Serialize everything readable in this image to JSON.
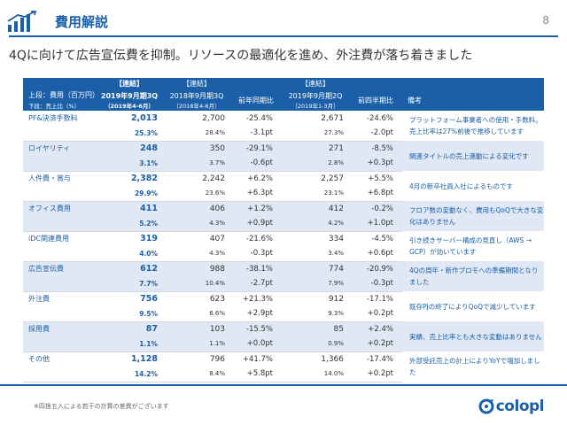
{
  "header": {
    "title": "費用解説",
    "page": "8"
  },
  "subtitle": "4Qに向けて広告宣伝費を抑制。リソースの最適化を進め、外注費が落ち着きました",
  "table": {
    "group_labels": {
      "col1": "【連結】",
      "col2": "【連結】",
      "col4": "【連結】"
    },
    "row_label_title": "上段：費用（百万円）",
    "row_label_sub": "下段：売上比（%）",
    "col1": {
      "l1": "2019年9月期3Q",
      "l2": "（2019年4-6月）"
    },
    "col2": {
      "l1": "2018年9月期3Q",
      "l2": "（2018年4-6月）"
    },
    "col3": "前年同期比",
    "col4": {
      "l1": "2019年9月期2Q",
      "l2": "（2019年1-3月）"
    },
    "col5": "前四半期比",
    "col6": "備考",
    "rows": [
      {
        "cat": "PF&決済手数料",
        "v1": "2,013",
        "v2": "2,700",
        "v3": "-25.4%",
        "v4": "2,671",
        "v5": "-24.6%",
        "p1": "25.3%",
        "p2": "28.4%",
        "p3": "-3.1pt",
        "p4": "27.3%",
        "p5": "-2.0pt",
        "note": "プラットフォーム事業者への使用・手数料。売上比率は27%前後で推移しています"
      },
      {
        "cat": "ロイヤリティ",
        "v1": "248",
        "v2": "350",
        "v3": "-29.1%",
        "v4": "271",
        "v5": "-8.5%",
        "p1": "3.1%",
        "p2": "3.7%",
        "p3": "-0.6pt",
        "p4": "2.8%",
        "p5": "+0.3pt",
        "note": "関連タイトルの売上連動による変化です"
      },
      {
        "cat": "人件費・賞与",
        "v1": "2,382",
        "v2": "2,242",
        "v3": "+6.2%",
        "v4": "2,257",
        "v5": "+5.5%",
        "p1": "29.9%",
        "p2": "23.6%",
        "p3": "+6.3pt",
        "p4": "23.1%",
        "p5": "+6.8pt",
        "note": "4月の新卒社員入社によるものです"
      },
      {
        "cat": "オフィス費用",
        "v1": "411",
        "v2": "406",
        "v3": "+1.2%",
        "v4": "412",
        "v5": "-0.2%",
        "p1": "5.2%",
        "p2": "4.3%",
        "p3": "+0.9pt",
        "p4": "4.2%",
        "p5": "+1.0pt",
        "note": "フロア数の変動なく、費用もQoQで大きな変化はありません"
      },
      {
        "cat": "iDC関連費用",
        "v1": "319",
        "v2": "407",
        "v3": "-21.6%",
        "v4": "334",
        "v5": "-4.5%",
        "p1": "4.0%",
        "p2": "4.3%",
        "p3": "-0.3pt",
        "p4": "3.4%",
        "p5": "+0.6pt",
        "note": "引き続きサーバー構成の見直し（AWS → GCP）が効いています"
      },
      {
        "cat": "広告宣伝費",
        "v1": "612",
        "v2": "988",
        "v3": "-38.1%",
        "v4": "774",
        "v5": "-20.9%",
        "p1": "7.7%",
        "p2": "10.4%",
        "p3": "-2.7pt",
        "p4": "7.9%",
        "p5": "-0.3pt",
        "note": "4Qの周年・新作プロモへの準備期間となりました"
      },
      {
        "cat": "外注費",
        "v1": "756",
        "v2": "623",
        "v3": "+21.3%",
        "v4": "912",
        "v5": "-17.1%",
        "p1": "9.5%",
        "p2": "6.6%",
        "p3": "+2.9pt",
        "p4": "9.3%",
        "p5": "+0.2pt",
        "note": "既存PJの終了によりQoQで減少しています"
      },
      {
        "cat": "採用費",
        "v1": "87",
        "v2": "103",
        "v3": "-15.5%",
        "v4": "85",
        "v5": "+2.4%",
        "p1": "1.1%",
        "p2": "1.1%",
        "p3": "+0.0pt",
        "p4": "0.9%",
        "p5": "+0.2pt",
        "note": "実績、売上比率とも大きな変動はありません"
      },
      {
        "cat": "その他",
        "v1": "1,128",
        "v2": "796",
        "v3": "+41.7%",
        "v4": "1,366",
        "v5": "-17.4%",
        "p1": "14.2%",
        "p2": "8.4%",
        "p3": "+5.8pt",
        "p4": "14.0%",
        "p5": "+0.2pt",
        "note": "外部受託売上の計上によりYoYで増加しました"
      }
    ]
  },
  "footnote": "※四捨五入による若干の計算の差異がございます",
  "logo": {
    "text": "colopl",
    "icon": "colopl-mark-icon"
  },
  "colors": {
    "accent": "#1a5fa8",
    "shade": "#dfe8f4"
  }
}
